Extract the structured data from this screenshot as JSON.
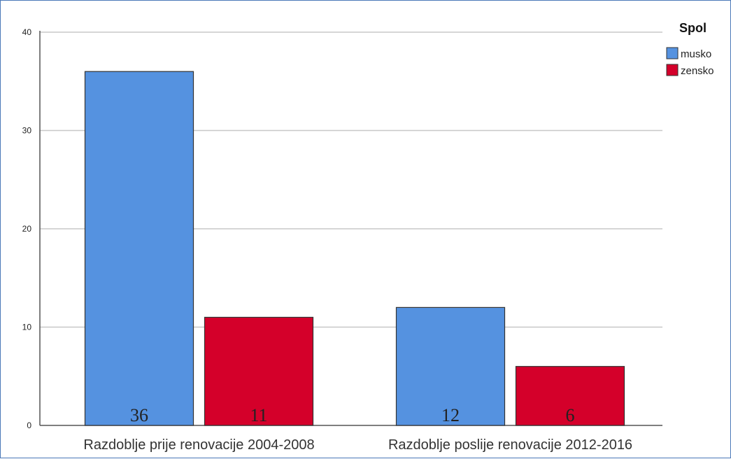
{
  "chart_data": {
    "type": "bar",
    "categories": [
      "Razdoblje prije renovacije 2004-2008",
      "Razdoblje poslije renovacije 2012-2016"
    ],
    "series": [
      {
        "name": "musko",
        "values": [
          36,
          12
        ],
        "color": "#5592e0"
      },
      {
        "name": "zensko",
        "values": [
          11,
          6
        ],
        "color": "#d4002a"
      }
    ],
    "data_labels": [
      [
        "36",
        "12"
      ],
      [
        "11",
        "6"
      ]
    ],
    "yticks": [
      "0",
      "10",
      "20",
      "30",
      "40"
    ],
    "ylim": [
      0,
      40
    ],
    "grid": true,
    "legend": {
      "title": "Spol",
      "position": "top-right"
    },
    "title": "",
    "xlabel": "",
    "ylabel": ""
  }
}
